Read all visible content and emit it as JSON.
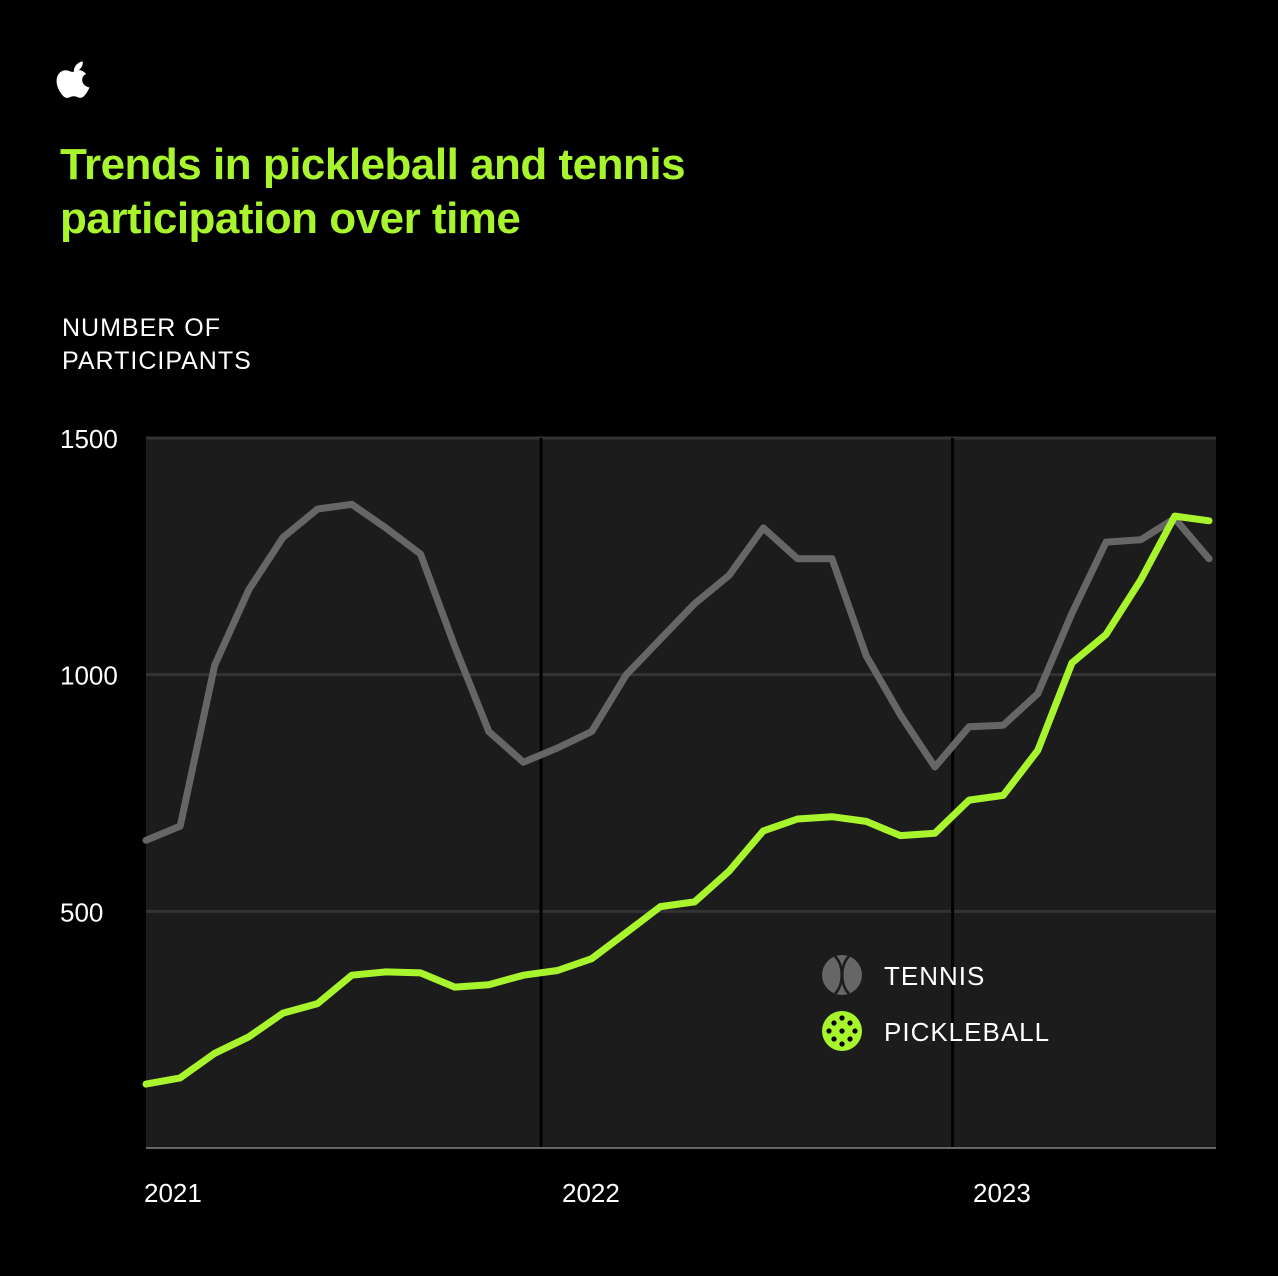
{
  "colors": {
    "background": "#000000",
    "plot_background": "#1c1c1c",
    "gridline": "#333333",
    "year_divider": "#000000",
    "axis_baseline": "#666666",
    "text": "#ffffff",
    "accent": "#a8f52d",
    "tennis": "#666666",
    "pickleball": "#a8f52d"
  },
  "brand": {
    "logo_icon": "apple-logo-icon"
  },
  "chart_data": {
    "type": "line",
    "title": "Trends in pickleball and tennis participation over time",
    "ylabel": "NUMBER OF PARTICIPANTS",
    "xlabel": "",
    "ylim": [
      0,
      1500
    ],
    "yticks": [
      500,
      1000,
      1500
    ],
    "ytick_labels": [
      "500",
      "1000",
      "1500"
    ],
    "xlim": [
      2021,
      2023.6
    ],
    "xticks": [
      2021,
      2022,
      2023
    ],
    "xtick_labels": [
      "2021",
      "2022",
      "2023"
    ],
    "grid": true,
    "legend_position": "lower-right",
    "x": [
      2021.0,
      2021.083,
      2021.167,
      2021.25,
      2021.333,
      2021.417,
      2021.5,
      2021.583,
      2021.667,
      2021.75,
      2021.833,
      2021.917,
      2022.0,
      2022.083,
      2022.167,
      2022.25,
      2022.333,
      2022.417,
      2022.5,
      2022.583,
      2022.667,
      2022.75,
      2022.833,
      2022.917,
      2023.0,
      2023.083,
      2023.167,
      2023.25,
      2023.333,
      2023.417,
      2023.5,
      2023.583
    ],
    "series": [
      {
        "name": "TENNIS",
        "icon": "tennis-ball-icon",
        "color": "#666666",
        "values": [
          650,
          680,
          1020,
          1180,
          1290,
          1350,
          1360,
          1310,
          1255,
          1060,
          880,
          815,
          845,
          880,
          1000,
          1075,
          1150,
          1210,
          1310,
          1245,
          1245,
          1040,
          915,
          805,
          890,
          893,
          960,
          1130,
          1280,
          1285,
          1330,
          1245
        ]
      },
      {
        "name": "PICKLEBALL",
        "icon": "pickleball-icon",
        "color": "#a8f52d",
        "values": [
          135,
          148,
          200,
          235,
          285,
          305,
          365,
          372,
          370,
          340,
          345,
          365,
          375,
          400,
          455,
          510,
          520,
          585,
          670,
          695,
          700,
          690,
          660,
          665,
          735,
          745,
          840,
          1025,
          1085,
          1200,
          1335,
          1325
        ]
      }
    ]
  }
}
